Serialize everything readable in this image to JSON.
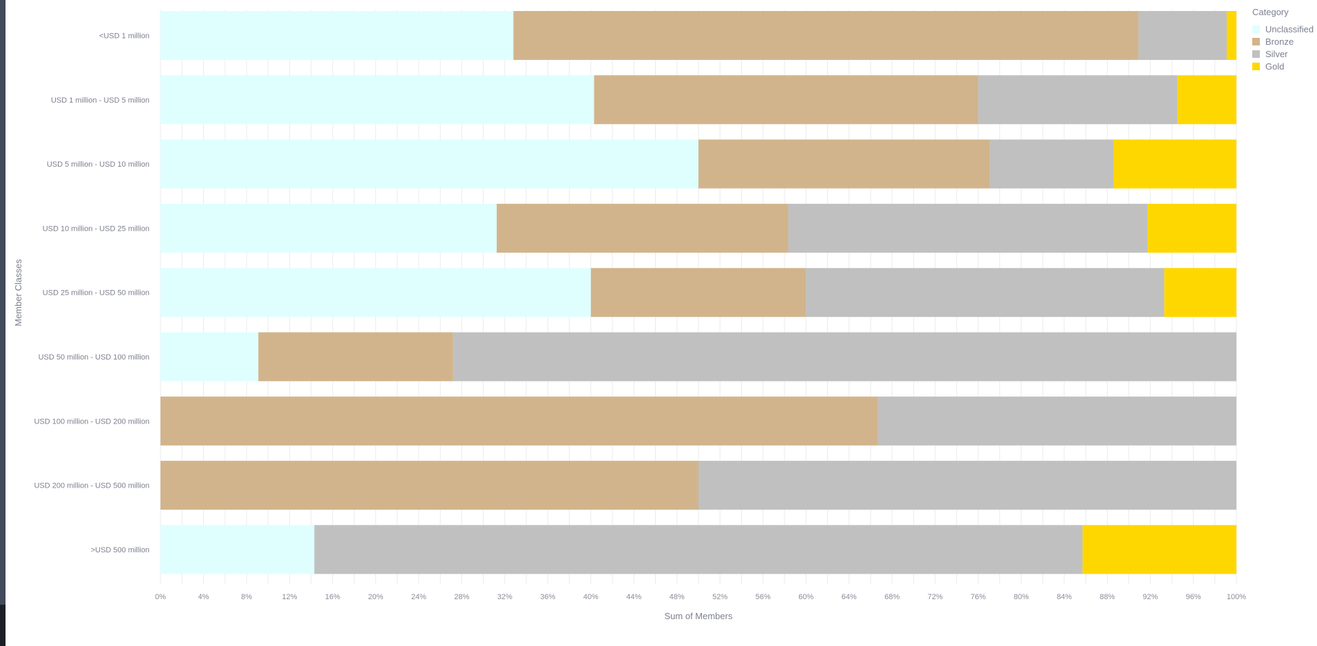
{
  "chart_data": {
    "type": "bar",
    "orientation": "horizontal",
    "stacked": "percent",
    "xlabel": "Sum of Members",
    "ylabel": "Member Classes",
    "xlim": [
      0,
      100
    ],
    "xticks": [
      "0%",
      "4%",
      "8%",
      "12%",
      "16%",
      "20%",
      "24%",
      "28%",
      "32%",
      "36%",
      "40%",
      "44%",
      "48%",
      "52%",
      "56%",
      "60%",
      "64%",
      "68%",
      "72%",
      "76%",
      "80%",
      "84%",
      "88%",
      "92%",
      "96%",
      "100%"
    ],
    "grid": true,
    "legend_title": "Category",
    "legend_placement": "top-right",
    "categories": [
      "<USD 1 million",
      "USD 1 million - USD 5 million",
      "USD 5 million - USD 10 million",
      "USD 10 million - USD 25 million",
      "USD 25 million - USD 50 million",
      "USD 50 million - USD 100 million",
      "USD 100 million - USD 200 million",
      "USD 200 million - USD 500 million",
      ">USD 500 million"
    ],
    "series": [
      {
        "name": "Unclassified",
        "color": "#dfffff",
        "values": [
          32.8,
          40.3,
          50,
          31.25,
          40,
          9.1,
          0,
          0,
          14.3
        ]
      },
      {
        "name": "Bronze",
        "color": "#d2b48c",
        "values": [
          58.1,
          35.7,
          27.1,
          27.1,
          20,
          18.1,
          66.7,
          50,
          0
        ]
      },
      {
        "name": "Silver",
        "color": "#c0c0c0",
        "values": [
          8.2,
          18.5,
          11.5,
          33.4,
          33.3,
          72.8,
          33.3,
          50,
          71.4
        ]
      },
      {
        "name": "Gold",
        "color": "#ffd700",
        "values": [
          0.9,
          5.5,
          11.4,
          8.25,
          6.7,
          0,
          0,
          0,
          14.3
        ]
      }
    ]
  }
}
